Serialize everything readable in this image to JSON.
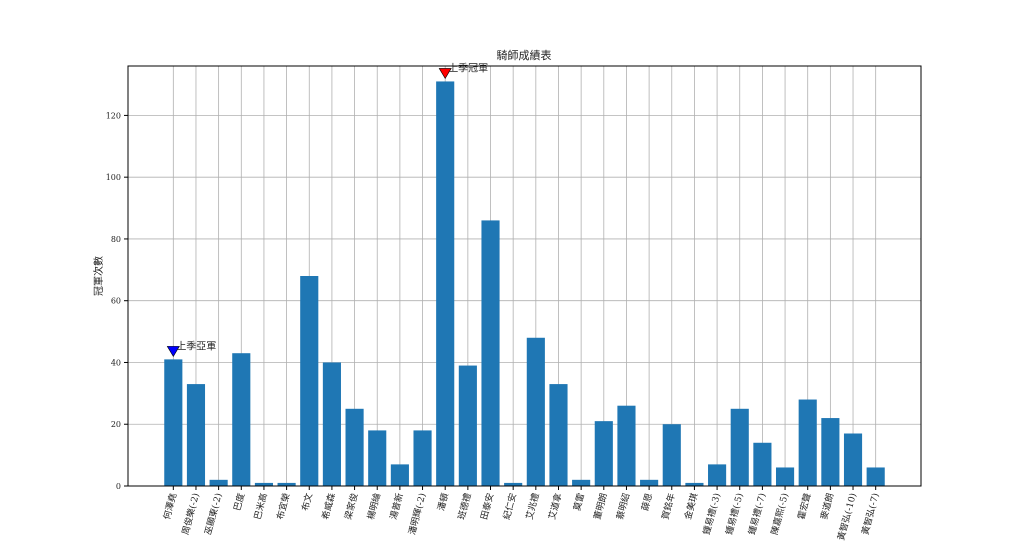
{
  "chart_data": {
    "type": "bar",
    "title": "騎師成績表",
    "y_label": "冠軍次數",
    "categories": [
      "何澤堯",
      "周俊樂(-2)",
      "巫顯東(-2)",
      "巴度",
      "巴米高",
      "布宜榮",
      "布文",
      "希威森",
      "梁家俊",
      "楊明綸",
      "湯普新",
      "潘明輝(-2)",
      "潘頓",
      "班德禮",
      "田泰安",
      "紀仁安",
      "艾兆禮",
      "艾道拿",
      "莫雷",
      "董明朗",
      "蔡明紹",
      "薛恩",
      "賀銘年",
      "金美琪",
      "鍾易禮(-3)",
      "鍾易禮(-5)",
      "鍾易禮(-7)",
      "陳嘉熙(-5)",
      "霍宏聲",
      "麥道朗",
      "黃智弘(-10)",
      "黃智弘(-7)"
    ],
    "values": [
      41,
      33,
      2,
      43,
      1,
      1,
      68,
      40,
      25,
      18,
      7,
      18,
      131,
      39,
      86,
      1,
      48,
      33,
      2,
      21,
      26,
      2,
      20,
      1,
      7,
      25,
      14,
      6,
      28,
      22,
      17,
      6
    ],
    "color": "#1f77b4",
    "ylim": [
      0,
      136
    ],
    "yticks": [
      0,
      20,
      40,
      60,
      80,
      100,
      120
    ],
    "grid": true,
    "annotations": [
      {
        "text": "上季亞軍",
        "category": "何澤堯",
        "color": "#0000ff"
      },
      {
        "text": "上季冠軍",
        "category": "潘頓",
        "color": "#ff0000"
      }
    ]
  }
}
